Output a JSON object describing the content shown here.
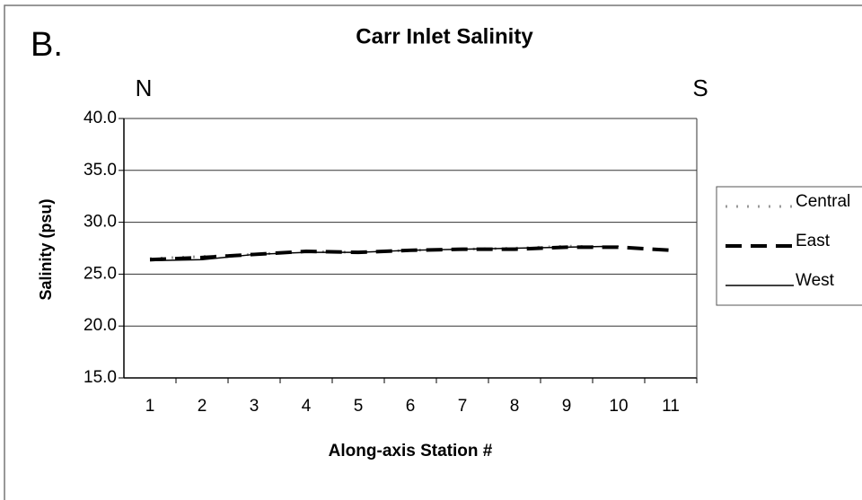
{
  "chart_data": {
    "type": "line",
    "panel_label": "B.",
    "title": "Carr Inlet Salinity",
    "left_label": "N",
    "right_label": "S",
    "xlabel": "Along-axis Station #",
    "ylabel": "Salinity (psu)",
    "categories": [
      "1",
      "2",
      "3",
      "4",
      "5",
      "6",
      "7",
      "8",
      "9",
      "10",
      "11"
    ],
    "series": [
      {
        "name": "Central",
        "color": "#999999",
        "values": [
          26.5,
          26.7,
          26.9,
          27.2,
          27.1,
          27.3,
          27.4,
          27.5,
          27.7,
          27.6,
          null
        ]
      },
      {
        "name": "East",
        "color": "#000000",
        "values": [
          26.4,
          26.6,
          26.9,
          27.2,
          27.1,
          27.3,
          27.4,
          27.4,
          27.6,
          27.6,
          27.3
        ]
      },
      {
        "name": "West",
        "color": "#000000",
        "values": [
          26.3,
          26.4,
          26.9,
          27.1,
          27.1,
          27.3,
          27.4,
          27.5,
          27.6,
          27.7,
          null
        ]
      }
    ],
    "ylim": [
      15,
      40
    ],
    "yticks": [
      {
        "value": 15,
        "label": "15.0"
      },
      {
        "value": 20,
        "label": "20.0"
      },
      {
        "value": 25,
        "label": "25.0"
      },
      {
        "value": 30,
        "label": "30.0"
      },
      {
        "value": 35,
        "label": "35.0"
      },
      {
        "value": 40,
        "label": "40.0"
      }
    ],
    "grid": true,
    "legend": "right"
  }
}
